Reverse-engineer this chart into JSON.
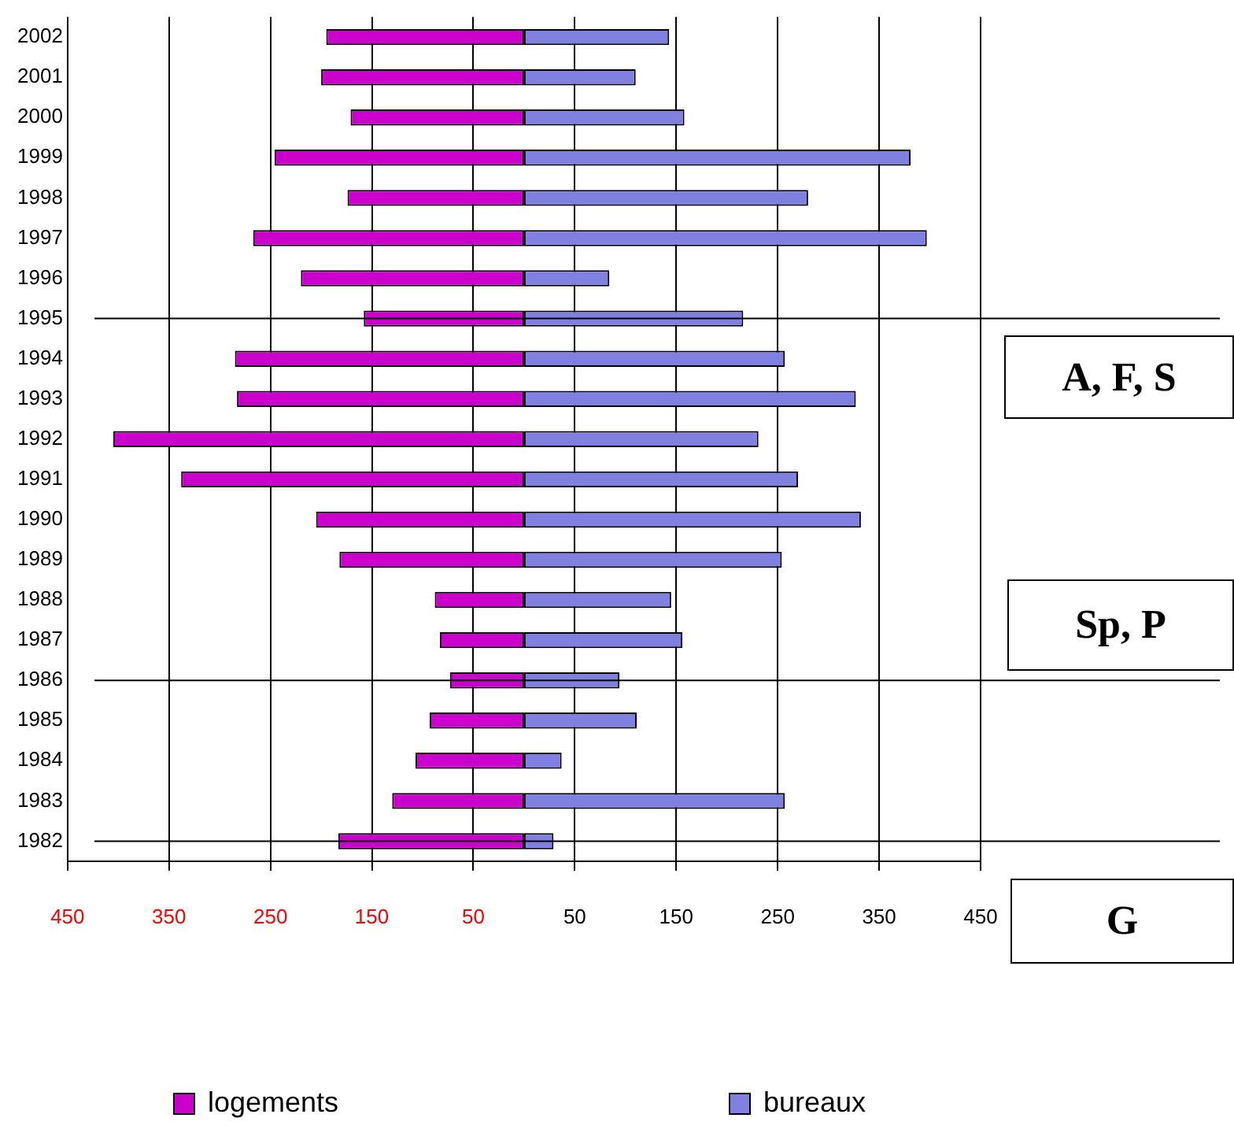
{
  "chart_data": {
    "type": "bar",
    "orientation": "horizontal",
    "stacked": true,
    "categories": [
      "2002",
      "2001",
      "2000",
      "1999",
      "1998",
      "1997",
      "1996",
      "1995",
      "1994",
      "1993",
      "1992",
      "1991",
      "1990",
      "1989",
      "1988",
      "1987",
      "1986",
      "1985",
      "1984",
      "1983",
      "1982"
    ],
    "series": [
      {
        "name": "logements",
        "color": "#cc00cc",
        "values": [
          -195,
          -200,
          -171,
          -246,
          -174,
          -267,
          -220,
          -158,
          -285,
          -283,
          -405,
          -338,
          -205,
          -182,
          -88,
          -83,
          -73,
          -93,
          -107,
          -130,
          -183
        ]
      },
      {
        "name": "bureaux",
        "color": "#8080e0",
        "values": [
          143,
          110,
          158,
          381,
          280,
          397,
          84,
          216,
          257,
          327,
          231,
          270,
          332,
          254,
          145,
          156,
          94,
          111,
          37,
          257,
          29
        ]
      }
    ],
    "xlim": [
      -450,
      450
    ],
    "xticks": [
      {
        "value": -450,
        "label": "450"
      },
      {
        "value": -350,
        "label": "350"
      },
      {
        "value": -250,
        "label": "250"
      },
      {
        "value": -150,
        "label": "150"
      },
      {
        "value": -50,
        "label": "50"
      },
      50,
      150,
      250,
      350,
      450
    ],
    "ref_lines": [
      {
        "axis": "y",
        "value": "1995"
      },
      {
        "axis": "y",
        "value": "1986"
      },
      {
        "axis": "y",
        "value": "1982"
      }
    ],
    "annotations": [
      "A, F, S",
      "Sp, P",
      "G"
    ],
    "grid": "x",
    "legend": "bottom"
  }
}
